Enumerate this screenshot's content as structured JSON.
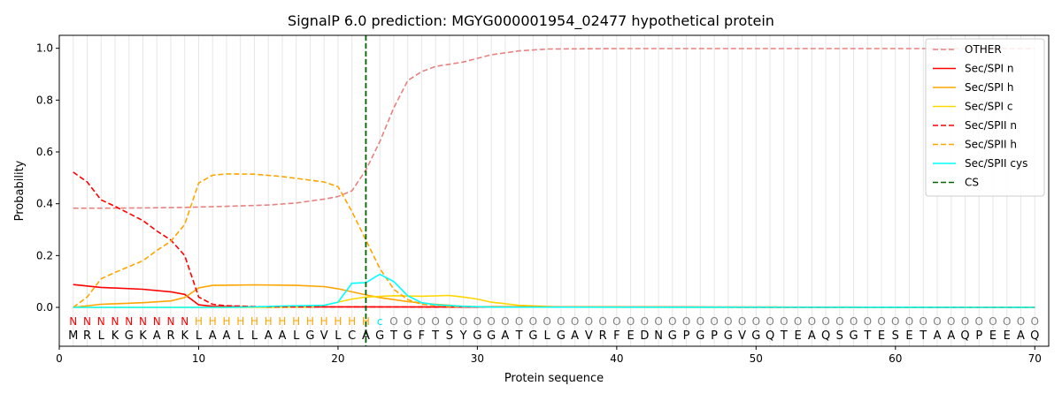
{
  "chart_data": {
    "type": "line",
    "title": "SignalP 6.0 prediction: MGYG000001954_02477 hypothetical protein",
    "xlabel": "Protein sequence",
    "ylabel": "Probability",
    "xlim": [
      0,
      71
    ],
    "ylim": [
      -0.15,
      1.05
    ],
    "x_ticks": [
      "0",
      "10",
      "20",
      "30",
      "40",
      "50",
      "60",
      "70"
    ],
    "y_ticks": [
      "0.0",
      "0.2",
      "0.4",
      "0.6",
      "0.8",
      "1.0"
    ],
    "grid": "vertical lines at each residue",
    "legend_position": "top-right",
    "sequence": "MRLKGKARKLAALLAALGVLCAGTGFTSYGGATGLGAVRFEDNGPGPGVGQTEAQSGTESETAAQPEEAQ",
    "region_labels": "NNNNNNNNNHHHHHHHHHHHHHcOOOOOOOOOOOOOOOOOOOOOOOOOOOOOOOOOOOOOOOOOOOOOOO",
    "region_colors": {
      "N": "#ff0000",
      "H": "#ffa500",
      "c": "#00e5ee",
      "O": "#808080"
    },
    "cleavage_site": 22,
    "series": [
      {
        "name": "OTHER",
        "color": "#e8807f",
        "dash": true,
        "points": [
          [
            1,
            0.383
          ],
          [
            3,
            0.383
          ],
          [
            6,
            0.384
          ],
          [
            9,
            0.386
          ],
          [
            12,
            0.39
          ],
          [
            15,
            0.395
          ],
          [
            17,
            0.403
          ],
          [
            19,
            0.418
          ],
          [
            20,
            0.428
          ],
          [
            21,
            0.45
          ],
          [
            22,
            0.53
          ],
          [
            23,
            0.64
          ],
          [
            24,
            0.77
          ],
          [
            25,
            0.875
          ],
          [
            26,
            0.91
          ],
          [
            27,
            0.93
          ],
          [
            29,
            0.947
          ],
          [
            31,
            0.975
          ],
          [
            33,
            0.99
          ],
          [
            35,
            0.997
          ],
          [
            40,
            0.999
          ],
          [
            70,
            0.999
          ]
        ]
      },
      {
        "name": "Sec/SPI n",
        "color": "#ff0000",
        "dash": false,
        "points": [
          [
            1,
            0.088
          ],
          [
            3,
            0.077
          ],
          [
            6,
            0.07
          ],
          [
            8,
            0.06
          ],
          [
            9,
            0.05
          ],
          [
            10,
            0.01
          ],
          [
            11,
            0.004
          ],
          [
            13,
            0.002
          ],
          [
            70,
            0.0
          ]
        ]
      },
      {
        "name": "Sec/SPI h",
        "color": "#ffa500",
        "dash": false,
        "points": [
          [
            1,
            0.0
          ],
          [
            3,
            0.012
          ],
          [
            6,
            0.018
          ],
          [
            8,
            0.025
          ],
          [
            9,
            0.038
          ],
          [
            10,
            0.075
          ],
          [
            11,
            0.085
          ],
          [
            14,
            0.087
          ],
          [
            17,
            0.085
          ],
          [
            19,
            0.08
          ],
          [
            20,
            0.072
          ],
          [
            21,
            0.06
          ],
          [
            22,
            0.048
          ],
          [
            23,
            0.038
          ],
          [
            24,
            0.03
          ],
          [
            25,
            0.022
          ],
          [
            27,
            0.012
          ],
          [
            29,
            0.004
          ],
          [
            31,
            0.001
          ],
          [
            70,
            0.0
          ]
        ]
      },
      {
        "name": "Sec/SPI c",
        "color": "#ffd700",
        "dash": false,
        "points": [
          [
            1,
            0.0
          ],
          [
            15,
            0.0
          ],
          [
            18,
            0.002
          ],
          [
            19,
            0.008
          ],
          [
            20,
            0.02
          ],
          [
            21,
            0.032
          ],
          [
            22,
            0.04
          ],
          [
            24,
            0.045
          ],
          [
            26,
            0.043
          ],
          [
            28,
            0.046
          ],
          [
            29,
            0.04
          ],
          [
            30,
            0.032
          ],
          [
            31,
            0.02
          ],
          [
            33,
            0.008
          ],
          [
            36,
            0.001
          ],
          [
            70,
            0.0
          ]
        ]
      },
      {
        "name": "Sec/SPII n",
        "color": "#ff0000",
        "dash": true,
        "points": [
          [
            1,
            0.522
          ],
          [
            2,
            0.484
          ],
          [
            3,
            0.415
          ],
          [
            4,
            0.39
          ],
          [
            6,
            0.335
          ],
          [
            7,
            0.295
          ],
          [
            8,
            0.26
          ],
          [
            9,
            0.2
          ],
          [
            10,
            0.04
          ],
          [
            11,
            0.012
          ],
          [
            12,
            0.006
          ],
          [
            15,
            0.002
          ],
          [
            70,
            0.0
          ]
        ]
      },
      {
        "name": "Sec/SPII h",
        "color": "#ffa500",
        "dash": true,
        "points": [
          [
            1,
            0.0
          ],
          [
            2,
            0.04
          ],
          [
            3,
            0.11
          ],
          [
            4,
            0.135
          ],
          [
            6,
            0.18
          ],
          [
            7,
            0.22
          ],
          [
            8,
            0.255
          ],
          [
            9,
            0.32
          ],
          [
            10,
            0.48
          ],
          [
            11,
            0.51
          ],
          [
            12,
            0.515
          ],
          [
            14,
            0.514
          ],
          [
            16,
            0.505
          ],
          [
            19,
            0.484
          ],
          [
            20,
            0.466
          ],
          [
            21,
            0.37
          ],
          [
            22,
            0.26
          ],
          [
            23,
            0.15
          ],
          [
            24,
            0.07
          ],
          [
            25,
            0.03
          ],
          [
            26,
            0.012
          ],
          [
            28,
            0.003
          ],
          [
            70,
            0.0
          ]
        ]
      },
      {
        "name": "Sec/SPII cys",
        "color": "#00ffff",
        "dash": false,
        "points": [
          [
            1,
            0.0
          ],
          [
            12,
            0.0
          ],
          [
            14,
            0.002
          ],
          [
            16,
            0.005
          ],
          [
            19,
            0.008
          ],
          [
            20,
            0.02
          ],
          [
            21,
            0.093
          ],
          [
            22,
            0.095
          ],
          [
            23,
            0.128
          ],
          [
            24,
            0.1
          ],
          [
            25,
            0.045
          ],
          [
            26,
            0.018
          ],
          [
            27,
            0.01
          ],
          [
            29,
            0.004
          ],
          [
            31,
            0.001
          ],
          [
            70,
            0.0
          ]
        ]
      },
      {
        "name": "CS",
        "color": "#006400",
        "dash": true,
        "points": []
      }
    ]
  }
}
